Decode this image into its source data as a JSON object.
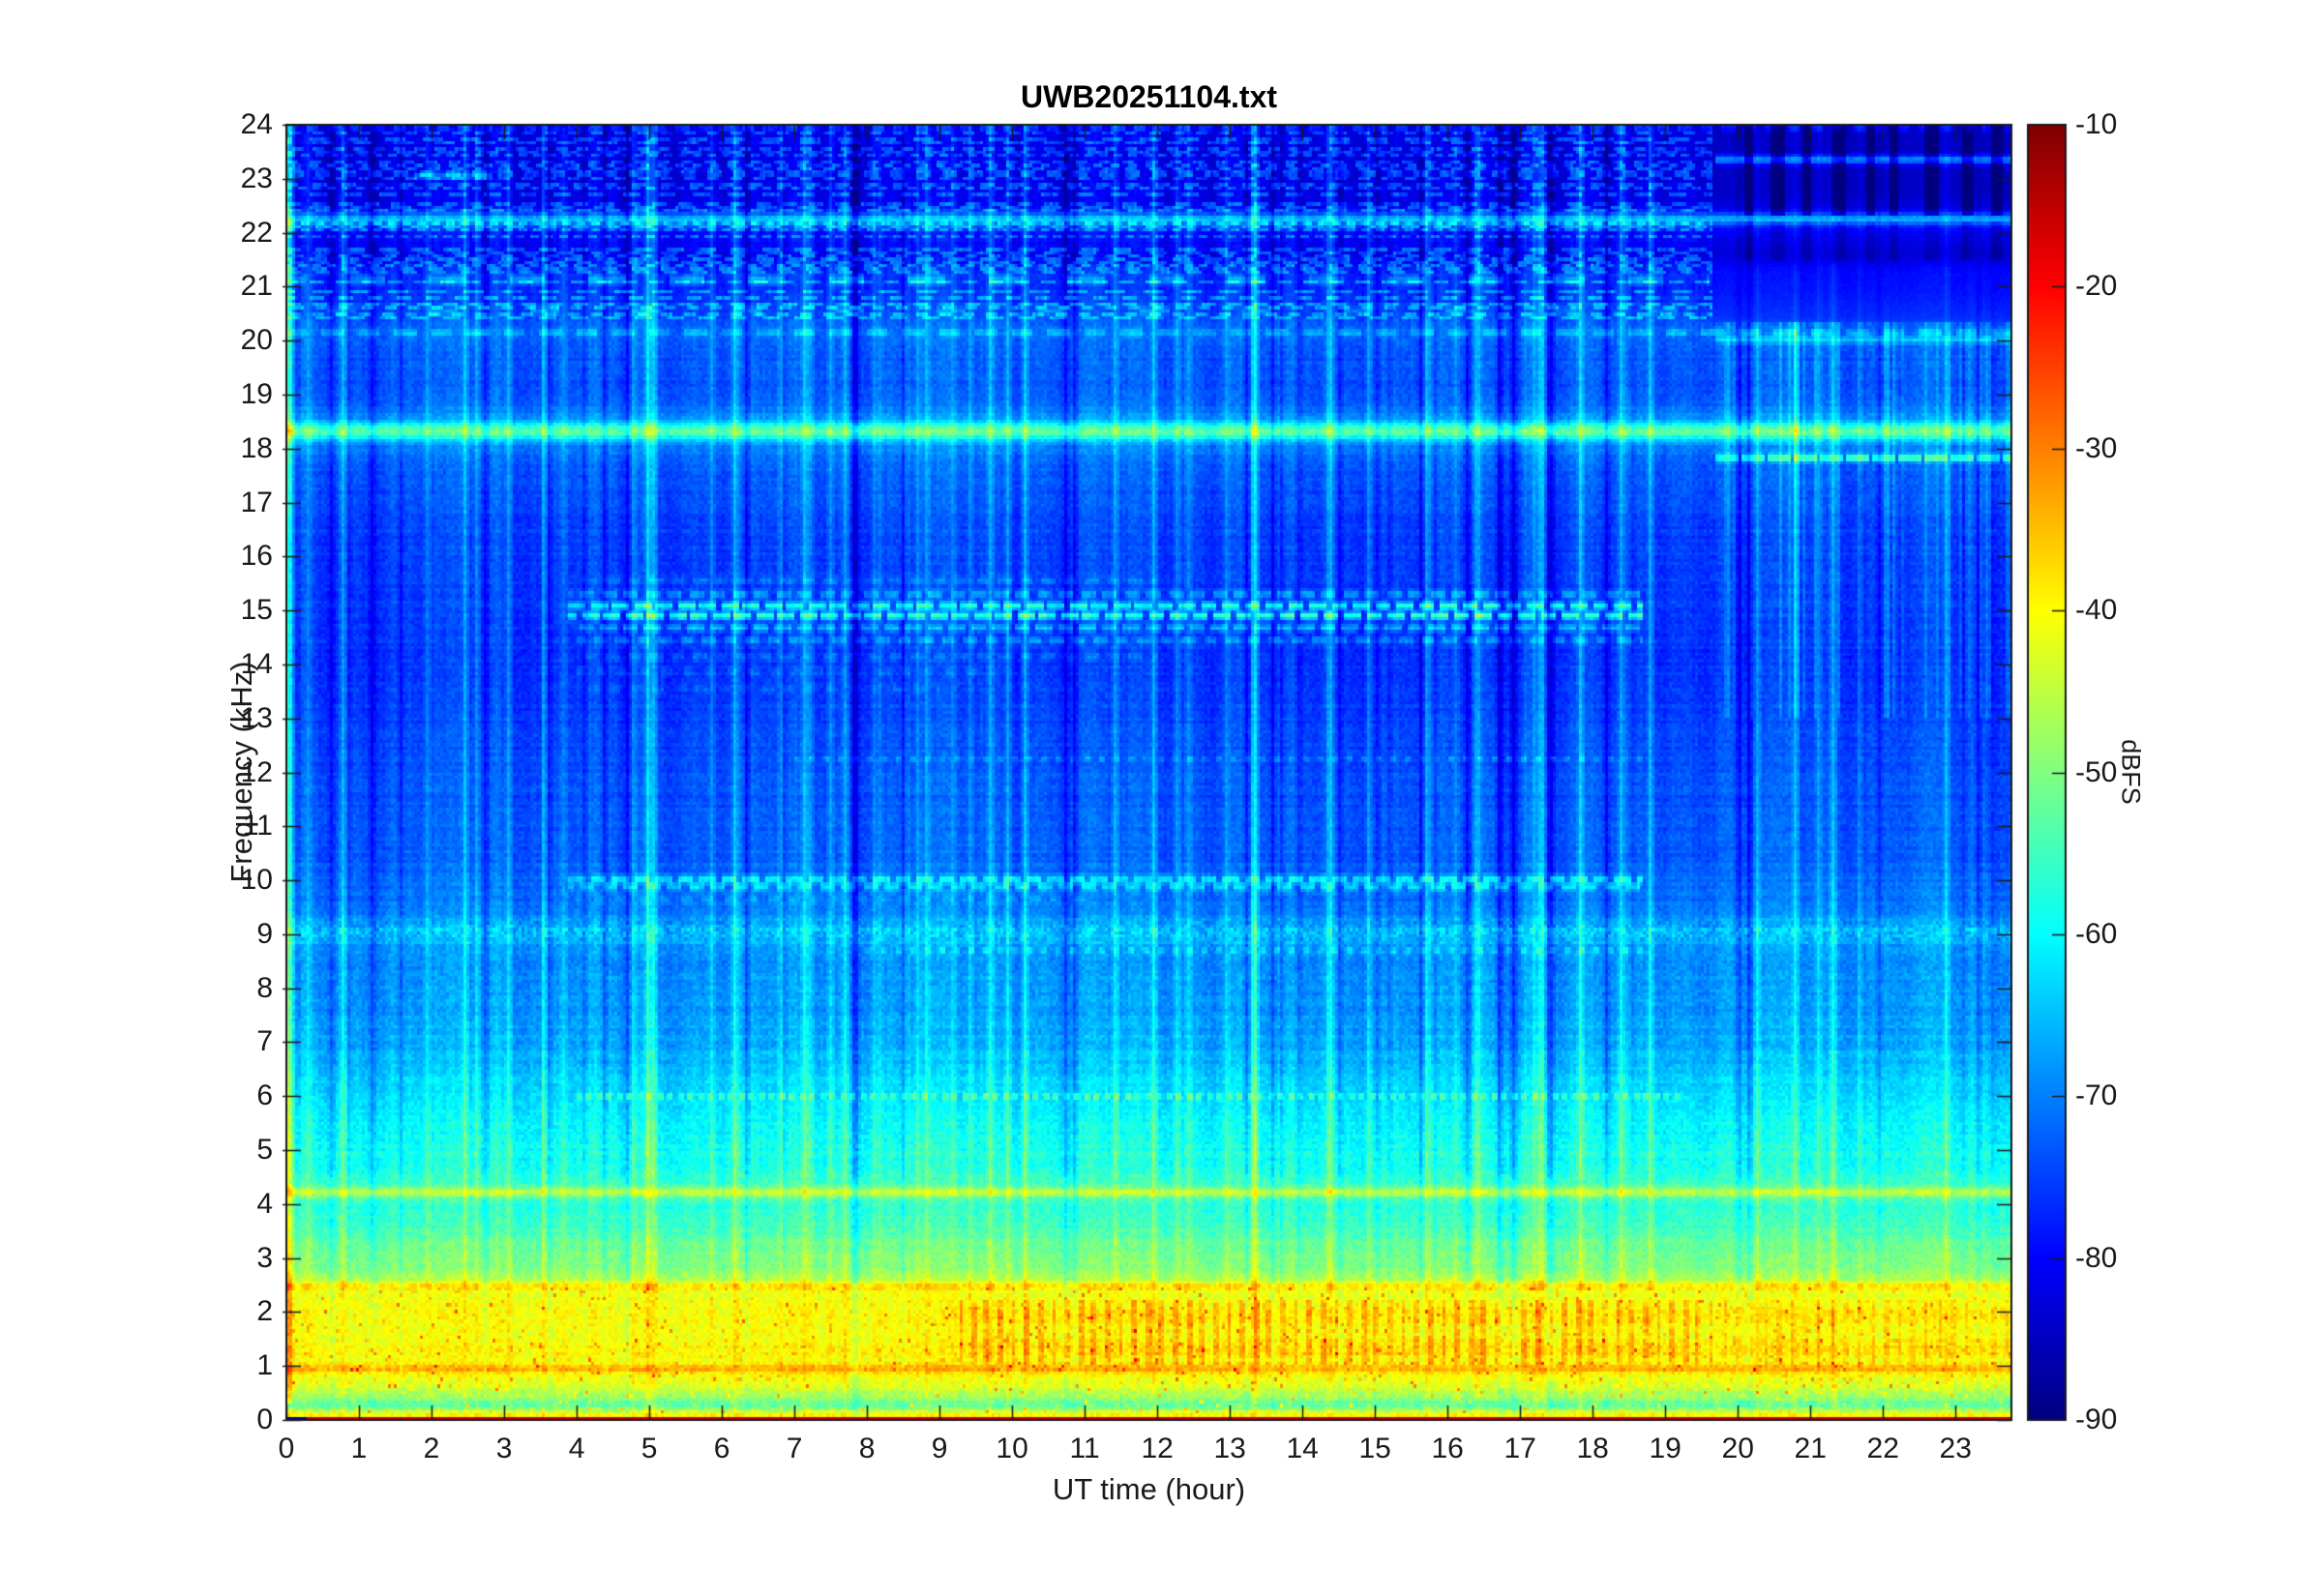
{
  "title": "UWB20251104.txt",
  "axes": {
    "xlabel": "UT time (hour)",
    "ylabel": "Frequency (kHz)",
    "x_tick_labels": [
      "0",
      "1",
      "2",
      "3",
      "4",
      "5",
      "6",
      "7",
      "8",
      "9",
      "10",
      "11",
      "12",
      "13",
      "14",
      "15",
      "16",
      "17",
      "18",
      "19",
      "20",
      "21",
      "22",
      "23"
    ],
    "y_tick_labels": [
      "0",
      "1",
      "2",
      "3",
      "4",
      "5",
      "6",
      "7",
      "8",
      "9",
      "10",
      "11",
      "12",
      "13",
      "14",
      "15",
      "16",
      "17",
      "18",
      "19",
      "20",
      "21",
      "22",
      "23",
      "24"
    ]
  },
  "colorbar": {
    "label": "dBFS",
    "tick_labels": [
      "-10",
      "-20",
      "-30",
      "-40",
      "-50",
      "-60",
      "-70",
      "-80",
      "-90"
    ],
    "tick_values": [
      -10,
      -20,
      -30,
      -40,
      -50,
      -60,
      -70,
      -80,
      -90
    ]
  },
  "chart_data": {
    "type": "heatmap",
    "subtype": "spectrogram",
    "title": "UWB20251104.txt",
    "xlabel": "UT time (hour)",
    "ylabel": "Frequency (kHz)",
    "x_range": [
      0,
      23.77
    ],
    "y_range": [
      0,
      24
    ],
    "x_ticks": [
      0,
      1,
      2,
      3,
      4,
      5,
      6,
      7,
      8,
      9,
      10,
      11,
      12,
      13,
      14,
      15,
      16,
      17,
      18,
      19,
      20,
      21,
      22,
      23
    ],
    "y_ticks": [
      0,
      1,
      2,
      3,
      4,
      5,
      6,
      7,
      8,
      9,
      10,
      11,
      12,
      13,
      14,
      15,
      16,
      17,
      18,
      19,
      20,
      21,
      22,
      23,
      24
    ],
    "colormap": "jet",
    "units": "dBFS",
    "colorbar_range": [
      -90,
      -10
    ],
    "grid": false,
    "background_profile": [
      [
        0.0,
        -16
      ],
      [
        0.05,
        -16
      ],
      [
        0.07,
        -40
      ],
      [
        0.1,
        -41
      ],
      [
        0.14,
        -43
      ],
      [
        0.2,
        -48
      ],
      [
        0.28,
        -53
      ],
      [
        0.38,
        -50
      ],
      [
        0.5,
        -46
      ],
      [
        0.65,
        -43
      ],
      [
        0.8,
        -41
      ],
      [
        0.95,
        -38.5
      ],
      [
        1.1,
        -40.5
      ],
      [
        1.35,
        -40
      ],
      [
        1.6,
        -40.5
      ],
      [
        1.9,
        -40
      ],
      [
        2.1,
        -41
      ],
      [
        2.3,
        -42
      ],
      [
        2.45,
        -42.5
      ],
      [
        2.6,
        -46
      ],
      [
        2.8,
        -49
      ],
      [
        3.0,
        -50.5
      ],
      [
        3.3,
        -52
      ],
      [
        3.6,
        -55
      ],
      [
        3.9,
        -57
      ],
      [
        4.1,
        -55
      ],
      [
        4.35,
        -55
      ],
      [
        4.6,
        -57.5
      ],
      [
        5.0,
        -58.5
      ],
      [
        5.4,
        -59.5
      ],
      [
        5.8,
        -61
      ],
      [
        6.2,
        -63
      ],
      [
        6.5,
        -64.5
      ],
      [
        7.0,
        -66.5
      ],
      [
        7.5,
        -67.5
      ],
      [
        8.0,
        -68.5
      ],
      [
        8.7,
        -68
      ],
      [
        9.0,
        -66.5
      ],
      [
        9.2,
        -68
      ],
      [
        9.6,
        -71
      ],
      [
        10.5,
        -72.5
      ],
      [
        11.0,
        -73
      ],
      [
        12.0,
        -73.5
      ],
      [
        13.0,
        -74.5
      ],
      [
        14.0,
        -75.5
      ],
      [
        15.5,
        -75
      ],
      [
        16.0,
        -75
      ],
      [
        17.0,
        -74
      ],
      [
        18.0,
        -72
      ],
      [
        18.55,
        -71
      ],
      [
        19.0,
        -73.5
      ],
      [
        19.8,
        -73
      ],
      [
        20.2,
        -71
      ],
      [
        20.45,
        -74
      ],
      [
        20.9,
        -76
      ],
      [
        21.3,
        -77
      ],
      [
        21.6,
        -81
      ],
      [
        22.1,
        -79
      ],
      [
        22.35,
        -80
      ],
      [
        22.5,
        -82
      ],
      [
        23.0,
        -82
      ],
      [
        24.0,
        -82
      ]
    ],
    "features": [
      {
        "f": 22.25,
        "db": 13,
        "t0": 0,
        "t1": 23.77,
        "style": "solid",
        "sigma": 0.07
      },
      {
        "f": 22.25,
        "db": 3,
        "t0": 0,
        "t1": 23.77,
        "style": "solid",
        "sigma": 0.22
      },
      {
        "f": 18.32,
        "db": 16,
        "t0": 0,
        "t1": 23.77,
        "style": "solid",
        "sigma": 0.1
      },
      {
        "f": 18.32,
        "db": 4,
        "t0": 0,
        "t1": 23.77,
        "style": "solid",
        "sigma": 0.3
      },
      {
        "f": 23.05,
        "db": 10,
        "t0": 1.75,
        "t1": 2.85,
        "style": "solid",
        "sigma": 0.05
      },
      {
        "f": 23.35,
        "db": 15,
        "t0": 19.7,
        "t1": 23.77,
        "style": "solid",
        "sigma": 0.06
      },
      {
        "f": 23.95,
        "db": 7,
        "t0": 0,
        "t1": 23.77,
        "style": "dash",
        "period": 0.3,
        "duty": 0.6,
        "phase": 0.1,
        "sigma": 0.05
      },
      {
        "f": 17.82,
        "db": 16,
        "t0": 19.7,
        "t1": 23.77,
        "style": "dash",
        "period": 0.36,
        "duty": 0.82,
        "phase": 0,
        "sigma": 0.05
      },
      {
        "f": 21.12,
        "db": 9,
        "t0": 0,
        "t1": 19.6,
        "style": "dash",
        "period": 1.1,
        "duty": 0.45,
        "phase": 0.2,
        "sigma": 0.07
      },
      {
        "f": 20.55,
        "db": 6,
        "t0": 0,
        "t1": 19.6,
        "style": "dash",
        "period": 1.4,
        "duty": 0.3,
        "phase": 0.6,
        "sigma": 0.05
      },
      {
        "f": 20.15,
        "db": 6,
        "t0": 0,
        "t1": 23.77,
        "style": "dash",
        "period": 0.5,
        "duty": 0.6,
        "phase": 0,
        "sigma": 0.05
      },
      {
        "f": 20.02,
        "db": 8,
        "t0": 19.7,
        "t1": 23.77,
        "style": "solid",
        "sigma": 0.05
      },
      {
        "f": 15.55,
        "db": 4,
        "t0": 4.2,
        "t1": 12,
        "style": "dash",
        "period": 0.3,
        "duty": 0.6,
        "phase": 0.3,
        "sigma": 0.05
      },
      {
        "f": 15.3,
        "db": 8,
        "t0": 3.9,
        "t1": 18.7,
        "style": "dash",
        "period": 0.3,
        "duty": 0.7,
        "phase": 0.5,
        "sigma": 0.05
      },
      {
        "f": 15.08,
        "db": 15,
        "t0": 3.9,
        "t1": 18.7,
        "style": "dash",
        "period": 0.3,
        "duty": 0.75,
        "phase": 0,
        "sigma": 0.05
      },
      {
        "f": 14.9,
        "db": 17,
        "t0": 3.9,
        "t1": 18.7,
        "style": "dash",
        "period": 0.3,
        "duty": 0.75,
        "phase": 0.4,
        "sigma": 0.05
      },
      {
        "f": 14.68,
        "db": 9,
        "t0": 3.95,
        "t1": 18.7,
        "style": "dash",
        "period": 0.3,
        "duty": 0.7,
        "phase": 0.7,
        "sigma": 0.05
      },
      {
        "f": 14.45,
        "db": 6,
        "t0": 4.0,
        "t1": 18.7,
        "style": "dash",
        "period": 0.3,
        "duty": 0.6,
        "phase": 0.2,
        "sigma": 0.05
      },
      {
        "f": 14.15,
        "db": 4,
        "t0": 4.0,
        "t1": 12,
        "style": "dash",
        "period": 0.3,
        "duty": 0.55,
        "phase": 0.6,
        "sigma": 0.05
      },
      {
        "f": 13.85,
        "db": 3,
        "t0": 4.0,
        "t1": 10,
        "style": "dash",
        "period": 0.3,
        "duty": 0.5,
        "phase": 0.1,
        "sigma": 0.05
      },
      {
        "f": 13.55,
        "db": 2.5,
        "t0": 4.1,
        "t1": 9,
        "style": "dash",
        "period": 0.3,
        "duty": 0.5,
        "phase": 0.8,
        "sigma": 0.05
      },
      {
        "f": 12.25,
        "db": 5,
        "t0": 7.0,
        "t1": 18.7,
        "style": "dot",
        "period": 0.2,
        "duty": 0.45,
        "phase": 0,
        "sigma": 0.04
      },
      {
        "f": 10.02,
        "db": 11,
        "t0": 3.9,
        "t1": 18.7,
        "style": "dash",
        "period": 0.3,
        "duty": 0.7,
        "phase": 0,
        "sigma": 0.05
      },
      {
        "f": 9.88,
        "db": 9,
        "t0": 3.9,
        "t1": 18.7,
        "style": "dash",
        "period": 0.3,
        "duty": 0.7,
        "phase": 0.5,
        "sigma": 0.05
      },
      {
        "f": 9.65,
        "db": 4,
        "t0": 4.0,
        "t1": 11,
        "style": "dash",
        "period": 0.3,
        "duty": 0.5,
        "phase": 0.2,
        "sigma": 0.05
      },
      {
        "f": 9.05,
        "db": 4,
        "t0": 0,
        "t1": 23.77,
        "style": "band",
        "sigma": 0.15
      },
      {
        "f": 8.7,
        "db": 6,
        "t0": 8.0,
        "t1": 18.7,
        "style": "dot",
        "period": 0.2,
        "duty": 0.5,
        "phase": 0,
        "sigma": 0.04
      },
      {
        "f": 6.0,
        "db": 9,
        "t0": 4.0,
        "t1": 19.2,
        "style": "dot",
        "period": 0.14,
        "duty": 0.5,
        "phase": 0,
        "sigma": 0.04
      },
      {
        "f": 4.22,
        "db": 11,
        "t0": 0,
        "t1": 23.77,
        "style": "solid",
        "sigma": 0.06
      },
      {
        "f": 2.48,
        "db": 5,
        "t0": 0,
        "t1": 23.77,
        "style": "solid",
        "sigma": 0.06
      },
      {
        "f": 0.95,
        "db": 5,
        "t0": 0,
        "t1": 23.77,
        "style": "solid",
        "sigma": 0.05
      }
    ],
    "high_band_texture": {
      "f0": 20.35,
      "f1": 23.95,
      "t_max": 19.65,
      "row_prob": 0.55,
      "db": 5.5
    },
    "night_regime": {
      "t_start": 19.65,
      "f_min": 20.35,
      "base_drop_db": 2.5,
      "dark_bars_f": [
        22.3,
        24.0
      ],
      "dark_bar_db": -8,
      "dark_bars": [
        [
          20.1,
          20.2
        ],
        [
          20.45,
          20.65
        ],
        [
          20.9,
          21.0
        ],
        [
          21.3,
          21.5
        ],
        [
          21.75,
          21.87
        ],
        [
          22.1,
          22.2
        ],
        [
          22.55,
          22.75
        ],
        [
          23.1,
          23.25
        ],
        [
          23.5,
          23.66
        ]
      ]
    },
    "warm_blobs": [
      {
        "f0": 1.0,
        "f1": 2.2,
        "t0": 9.3,
        "t1": 19.45,
        "period": 0.185,
        "duty": 0.38,
        "db": 5.5
      },
      {
        "f0": 1.0,
        "f1": 2.2,
        "t0": 19.45,
        "t1": 23.77,
        "period": 0.185,
        "duty": 0.3,
        "db": 3.5
      }
    ],
    "warm_rows": [
      [
        1.22,
        1.5
      ],
      [
        1.8,
        2.08
      ]
    ],
    "bright_columns": [
      {
        "t": 0.03,
        "db": 7
      },
      {
        "t": 0.1,
        "db": 5
      },
      {
        "t": 7.22,
        "db": 5
      },
      {
        "t": 7.52,
        "db": 6
      },
      {
        "t": 8.2,
        "db": 4
      },
      {
        "t": 15.7,
        "db": 5
      },
      {
        "t": 16.1,
        "db": 4.5
      },
      {
        "t": 16.38,
        "db": 4
      },
      {
        "t": 21.65,
        "db": 5
      },
      {
        "t": 22.85,
        "db": 4
      }
    ],
    "dark_columns": [
      {
        "t": 0.62,
        "db": -5
      },
      {
        "t": 2.2,
        "db": -5.5
      },
      {
        "t": 2.9,
        "db": -5
      },
      {
        "t": 7.85,
        "db": -5
      },
      {
        "t": 13.6,
        "db": -6
      },
      {
        "t": 14.5,
        "db": -5
      },
      {
        "t": 20.0,
        "db": -4
      }
    ],
    "bottom_line": {
      "f_max": 0.055,
      "db": -16,
      "black_notch_t": 0.28,
      "black_db": -88
    }
  }
}
